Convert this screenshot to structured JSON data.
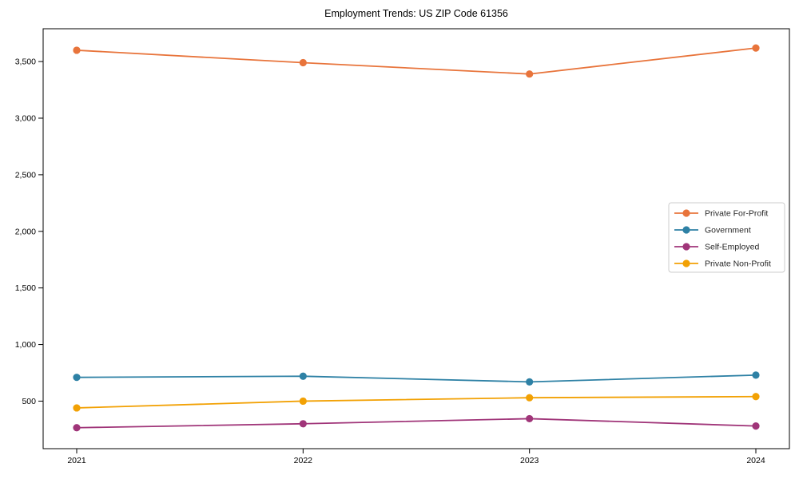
{
  "chart_data": {
    "type": "line",
    "title": "Employment Trends: US ZIP Code 61356",
    "xlabel": "",
    "ylabel": "",
    "x": [
      "2021",
      "2022",
      "2023",
      "2024"
    ],
    "series": [
      {
        "name": "Private For-Profit",
        "color": "#E8743B",
        "values": [
          3600,
          3490,
          3390,
          3620
        ]
      },
      {
        "name": "Government",
        "color": "#2E81A5",
        "values": [
          710,
          720,
          670,
          730
        ]
      },
      {
        "name": "Self-Employed",
        "color": "#A03579",
        "values": [
          265,
          300,
          345,
          280
        ]
      },
      {
        "name": "Private Non-Profit",
        "color": "#F2A104",
        "values": [
          440,
          500,
          530,
          540
        ]
      }
    ],
    "yticks": [
      500,
      1000,
      1500,
      2000,
      2500,
      3000,
      3500
    ],
    "ytick_labels": [
      "500",
      "1,000",
      "1,500",
      "2,000",
      "2,500",
      "3,000",
      "3,500"
    ],
    "ylim": [
      80,
      3790
    ],
    "grid": false,
    "legend_position": "center-right",
    "axis_color": "#000000",
    "tick_label_color": "#000000",
    "legend_text_color": "#262626",
    "legend_border_color": "#cccccc",
    "background_color": "#ffffff"
  }
}
